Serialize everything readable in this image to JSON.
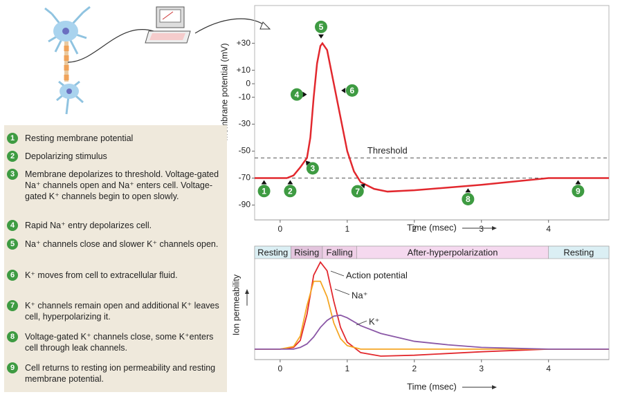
{
  "chart_data": [
    {
      "type": "line",
      "ylabel": "Membrane potential (mV)",
      "xlabel": "Time (msec)",
      "xlim": [
        -0.38,
        4.9
      ],
      "xticks": [
        0,
        1,
        2,
        3,
        4
      ],
      "ylim": [
        -101,
        58
      ],
      "yticks": [
        {
          "value": 30,
          "label": "+30"
        },
        {
          "value": 10,
          "label": "+10"
        },
        0,
        -10,
        -30,
        -50,
        -70,
        -90
      ],
      "x": [
        -0.38,
        0,
        0.1,
        0.2,
        0.3,
        0.4,
        0.45,
        0.5,
        0.55,
        0.6,
        0.63,
        0.7,
        0.8,
        0.9,
        1.0,
        1.1,
        1.2,
        1.4,
        1.6,
        2,
        3,
        4,
        4.9
      ],
      "series": [
        {
          "color": "#e2282e",
          "values": [
            -70,
            -70,
            -70,
            -68,
            -62,
            -55,
            -40,
            -10,
            15,
            28,
            30,
            25,
            0,
            -25,
            -50,
            -65,
            -73,
            -78,
            -80,
            -79,
            -75,
            -70,
            -70
          ]
        }
      ],
      "reference_lines": [
        {
          "y": -55,
          "label": "Threshold"
        },
        {
          "y": -70
        }
      ],
      "annotations": [
        {
          "label": "1",
          "x": -0.24,
          "y": -70
        },
        {
          "label": "2",
          "x": 0.15,
          "y": -70
        },
        {
          "label": "3",
          "x": 0.36,
          "y": -56
        },
        {
          "label": "4",
          "x": 0.43,
          "y": -8
        },
        {
          "label": "5",
          "x": 0.61,
          "y": 32
        },
        {
          "label": "6",
          "x": 0.88,
          "y": -5
        },
        {
          "label": "7",
          "x": 1.29,
          "y": -73
        },
        {
          "label": "8",
          "x": 2.8,
          "y": -76
        },
        {
          "label": "9",
          "x": 4.44,
          "y": -70
        }
      ]
    },
    {
      "type": "line",
      "ylabel": "Ion permeability",
      "xlabel": "Time (msec)",
      "xlim": [
        -0.38,
        4.9
      ],
      "xticks": [
        0,
        1,
        2,
        3,
        4
      ],
      "ylim": [
        -0.12,
        1.04
      ],
      "x": [
        -0.38,
        0,
        0.2,
        0.3,
        0.4,
        0.5,
        0.6,
        0.7,
        0.8,
        0.9,
        1.0,
        1.2,
        1.5,
        2,
        2.5,
        3,
        4,
        4.9
      ],
      "phases": [
        {
          "label": "Resting",
          "start": -0.38,
          "end": 0.16,
          "color": "#dbeff4"
        },
        {
          "label": "Rising",
          "start": 0.16,
          "end": 0.63,
          "color": "#e3c4dd"
        },
        {
          "label": "Falling",
          "start": 0.63,
          "end": 1.14,
          "color": "#efcfe7"
        },
        {
          "label": "After-hyperpolarization",
          "start": 1.14,
          "end": 4.0,
          "color": "#f5d9ef"
        },
        {
          "label": "Resting",
          "start": 4.0,
          "end": 4.9,
          "color": "#dbeff4"
        }
      ],
      "series": [
        {
          "name": "Action potential",
          "color": "#e2282e",
          "values": [
            0,
            0,
            0.02,
            0.1,
            0.4,
            0.85,
            1.0,
            0.9,
            0.55,
            0.25,
            0.08,
            -0.04,
            -0.08,
            -0.07,
            -0.05,
            -0.03,
            0,
            0
          ]
        },
        {
          "name": "Na⁺",
          "color": "#f5a623",
          "values": [
            0,
            0,
            0.03,
            0.15,
            0.5,
            0.78,
            0.78,
            0.6,
            0.3,
            0.12,
            0.04,
            0,
            0,
            0,
            0,
            0,
            0,
            0
          ]
        },
        {
          "name": "K⁺",
          "color": "#8a57a6",
          "values": [
            0,
            0,
            0,
            0.02,
            0.06,
            0.14,
            0.25,
            0.33,
            0.38,
            0.39,
            0.36,
            0.27,
            0.18,
            0.09,
            0.05,
            0.02,
            0,
            0
          ]
        }
      ]
    }
  ],
  "steps": [
    {
      "number": "1",
      "text": "Resting membrane potential"
    },
    {
      "number": "2",
      "text": "Depolarizing stimulus"
    },
    {
      "number": "3",
      "text": "Membrane depolarizes to threshold. Voltage-gated Na⁺ channels open and Na⁺ enters cell. Voltage-gated K⁺ channels begin to open slowly."
    },
    {
      "number": "4",
      "text": "Rapid Na⁺ entry depolarizes cell."
    },
    {
      "number": "5",
      "text": "Na⁺ channels close and slower K⁺ channels open."
    },
    {
      "number": "6",
      "text": "K⁺ moves from cell to extracellular fluid."
    },
    {
      "number": "7",
      "text": "K⁺ channels remain open and additional K⁺ leaves cell, hyperpolarizing it."
    },
    {
      "number": "8",
      "text": "Voltage-gated K⁺ channels close, some K⁺enters cell through leak channels."
    },
    {
      "number": "9",
      "text": "Cell returns to resting ion permeability and resting membrane potential."
    }
  ]
}
